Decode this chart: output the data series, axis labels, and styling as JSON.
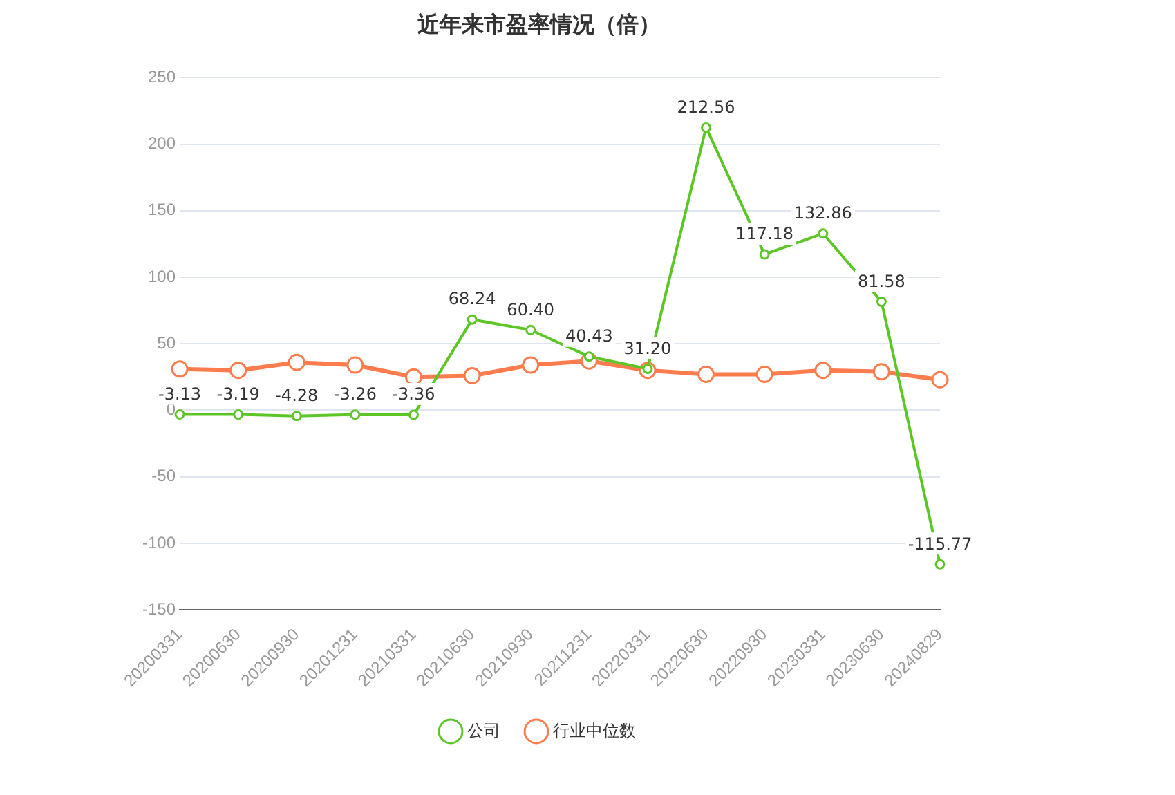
{
  "chart_data": {
    "type": "line",
    "title": "近年来市盈率情况（倍）",
    "categories": [
      "20200331",
      "20200630",
      "20200930",
      "20201231",
      "20210331",
      "20210630",
      "20210930",
      "20211231",
      "20220331",
      "20220630",
      "20220930",
      "20230331",
      "20230630",
      "20240829"
    ],
    "series": [
      {
        "name": "公司",
        "color": "#5cc627",
        "values": [
          -3.13,
          -3.19,
          -4.28,
          -3.26,
          -3.36,
          68.24,
          60.4,
          40.43,
          31.2,
          212.56,
          117.18,
          132.86,
          81.58,
          -115.77
        ],
        "value_labels": [
          "-3.13",
          "-3.19",
          "-4.28",
          "-3.26",
          "-3.36",
          "68.24",
          "60.40",
          "40.43",
          "31.20",
          "212.56",
          "117.18",
          "132.86",
          "81.58",
          "-115.77"
        ]
      },
      {
        "name": "行业中位数",
        "color": "#fd7c4d",
        "values": [
          31,
          30,
          36,
          34,
          25,
          26,
          34,
          37,
          30,
          27,
          27,
          30,
          29,
          23
        ]
      }
    ],
    "ylim": [
      -150,
      250
    ],
    "yticks": [
      -150,
      -100,
      -50,
      0,
      50,
      100,
      150,
      200,
      250
    ],
    "grid": "y",
    "legend": "bottom",
    "marker": "circle",
    "line_style": "solid"
  }
}
